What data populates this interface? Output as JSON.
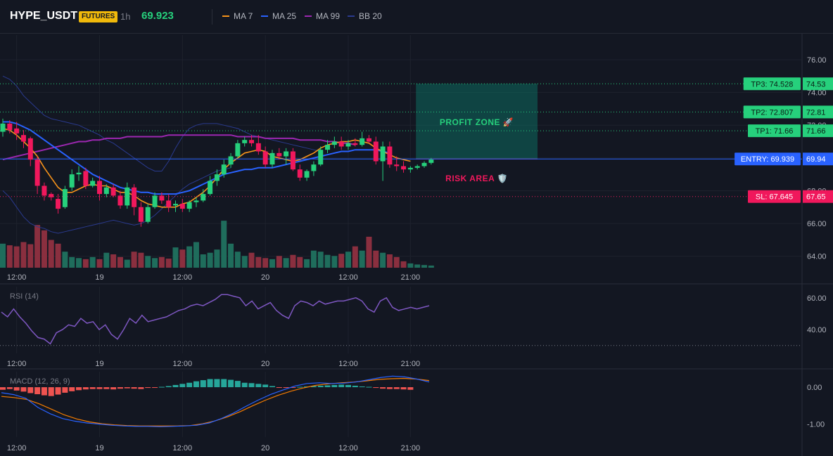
{
  "header": {
    "symbol": "HYPE_USDT",
    "badge": "FUTURES",
    "timeframe": "1h",
    "price": "69.923",
    "legend": [
      {
        "label": "MA 7",
        "color": "#f7931a"
      },
      {
        "label": "MA 25",
        "color": "#2962ff"
      },
      {
        "label": "MA 99",
        "color": "#9c27b0"
      },
      {
        "label": "BB 20",
        "color": "#2a3a8f"
      }
    ]
  },
  "colors": {
    "up": "#26d07c",
    "down": "#f0185c",
    "vol_up": "#1f6d5c",
    "vol_down": "#8a2f3f",
    "ma7": "#f7931a",
    "ma25": "#2962ff",
    "ma99": "#9c27b0",
    "bb": "#2a3a8f",
    "rsi": "#7e57c2",
    "macd": "#2962ff",
    "signal": "#f57c00",
    "hist_up": "#26a69a",
    "hist_down": "#ef5350",
    "profit": "#089981",
    "risk": "#f23645"
  },
  "time_axis": {
    "labels": [
      {
        "label": "12:00",
        "candle": 2
      },
      {
        "label": "19",
        "candle": 14
      },
      {
        "label": "12:00",
        "candle": 26
      },
      {
        "label": "20",
        "candle": 38
      },
      {
        "label": "12:00",
        "candle": 50
      },
      {
        "label": "21:00",
        "candle": 59
      }
    ]
  },
  "chart_data": [
    {
      "type": "candlestick",
      "title": "HYPE_USDT FUTURES 1h",
      "ylim": [
        63.3,
        77.5
      ],
      "y_ticks": [
        64.0,
        66.0,
        68.0,
        70.0,
        72.0,
        74.0,
        76.0
      ],
      "y_tick_labels": [
        "64.00",
        "66.00",
        "68.00",
        "70.00",
        "72.00",
        "74.00",
        "76.00"
      ],
      "candles": [
        [
          71.6,
          72.4,
          71.3,
          72.1
        ],
        [
          72.1,
          72.3,
          71.5,
          71.7
        ],
        [
          71.8,
          72.2,
          71.1,
          71.5
        ],
        [
          71.4,
          71.7,
          70.6,
          71.0
        ],
        [
          71.2,
          71.3,
          69.5,
          69.9
        ],
        [
          69.9,
          70.1,
          67.8,
          68.3
        ],
        [
          68.3,
          68.5,
          67.4,
          67.7
        ],
        [
          67.8,
          67.9,
          67.4,
          67.6
        ],
        [
          67.5,
          67.8,
          66.6,
          66.9
        ],
        [
          67.0,
          68.3,
          66.9,
          68.1
        ],
        [
          68.2,
          69.3,
          68.0,
          69.0
        ],
        [
          69.0,
          69.5,
          68.6,
          69.1
        ],
        [
          69.2,
          69.4,
          68.1,
          68.3
        ],
        [
          68.3,
          68.8,
          68.2,
          68.6
        ],
        [
          68.6,
          68.9,
          67.4,
          67.8
        ],
        [
          67.8,
          68.4,
          67.6,
          68.2
        ],
        [
          68.2,
          68.4,
          67.6,
          67.7
        ],
        [
          67.7,
          68.0,
          66.9,
          67.1
        ],
        [
          67.1,
          68.5,
          66.9,
          68.2
        ],
        [
          68.2,
          68.4,
          66.5,
          67.0
        ],
        [
          67.0,
          67.3,
          65.8,
          66.1
        ],
        [
          66.1,
          67.2,
          66.0,
          67.0
        ],
        [
          67.0,
          67.9,
          66.9,
          67.7
        ],
        [
          67.7,
          67.9,
          67.2,
          67.4
        ],
        [
          67.4,
          67.8,
          66.7,
          67.0
        ],
        [
          67.1,
          67.4,
          66.7,
          67.2
        ],
        [
          67.2,
          67.5,
          66.7,
          66.9
        ],
        [
          66.9,
          67.4,
          66.7,
          67.3
        ],
        [
          67.3,
          67.6,
          67.0,
          67.4
        ],
        [
          67.4,
          68.1,
          67.3,
          67.8
        ],
        [
          67.8,
          68.9,
          67.7,
          68.6
        ],
        [
          68.6,
          69.3,
          68.3,
          69.0
        ],
        [
          69.0,
          69.9,
          68.8,
          69.6
        ],
        [
          69.6,
          70.3,
          69.4,
          70.1
        ],
        [
          70.1,
          71.1,
          70.0,
          70.9
        ],
        [
          70.9,
          71.3,
          70.7,
          71.1
        ],
        [
          71.1,
          71.4,
          70.7,
          70.9
        ],
        [
          70.9,
          71.4,
          70.2,
          70.4
        ],
        [
          70.4,
          70.7,
          69.4,
          69.6
        ],
        [
          69.6,
          70.5,
          69.4,
          70.3
        ],
        [
          70.3,
          70.6,
          69.9,
          70.1
        ],
        [
          70.1,
          70.6,
          69.6,
          70.4
        ],
        [
          70.4,
          70.6,
          69.2,
          69.3
        ],
        [
          69.3,
          69.6,
          68.6,
          68.8
        ],
        [
          68.8,
          69.3,
          68.6,
          69.2
        ],
        [
          69.2,
          69.8,
          68.9,
          69.6
        ],
        [
          69.6,
          70.7,
          69.5,
          70.5
        ],
        [
          70.5,
          71.1,
          70.3,
          70.8
        ],
        [
          70.8,
          71.3,
          70.6,
          71.0
        ],
        [
          71.0,
          71.3,
          70.5,
          70.7
        ],
        [
          70.7,
          71.1,
          70.5,
          70.9
        ],
        [
          70.9,
          71.2,
          70.7,
          70.8
        ],
        [
          70.8,
          71.6,
          70.7,
          71.2
        ],
        [
          71.2,
          71.4,
          70.9,
          71.0
        ],
        [
          71.0,
          71.3,
          69.6,
          69.8
        ],
        [
          69.8,
          71.0,
          68.6,
          70.7
        ],
        [
          70.7,
          71.0,
          69.4,
          69.6
        ],
        [
          69.6,
          70.1,
          69.2,
          69.5
        ],
        [
          69.5,
          69.8,
          69.1,
          69.3
        ],
        [
          69.3,
          69.5,
          69.1,
          69.4
        ],
        [
          69.4,
          69.6,
          69.3,
          69.5
        ],
        [
          69.5,
          69.8,
          69.4,
          69.7
        ],
        [
          69.7,
          70.0,
          69.6,
          69.9
        ]
      ],
      "volume": [
        0.45,
        0.42,
        0.4,
        0.48,
        0.44,
        0.8,
        0.7,
        0.52,
        0.45,
        0.3,
        0.2,
        0.18,
        0.16,
        0.2,
        0.16,
        0.28,
        0.25,
        0.2,
        0.15,
        0.3,
        0.28,
        0.22,
        0.18,
        0.2,
        0.17,
        0.38,
        0.34,
        0.4,
        0.48,
        0.25,
        0.28,
        0.34,
        0.88,
        0.45,
        0.3,
        0.22,
        0.28,
        0.2,
        0.18,
        0.16,
        0.22,
        0.18,
        0.24,
        0.2,
        0.16,
        0.32,
        0.3,
        0.24,
        0.22,
        0.26,
        0.3,
        0.4,
        0.32,
        0.58,
        0.32,
        0.28,
        0.25,
        0.2,
        0.12,
        0.08,
        0.06,
        0.05,
        0.04
      ],
      "vol_max": 1.0,
      "ma7": [
        71.8,
        71.7,
        71.4,
        71.0,
        70.6,
        70.1,
        69.4,
        68.8,
        68.2,
        67.9,
        67.9,
        68.1,
        68.3,
        68.4,
        68.3,
        68.3,
        68.1,
        67.9,
        67.9,
        67.7,
        67.4,
        67.2,
        67.1,
        67.0,
        67.0,
        67.0,
        67.2,
        67.3,
        67.6,
        67.9,
        68.3,
        68.8,
        69.3,
        69.7,
        70.0,
        70.3,
        70.4,
        70.5,
        70.4,
        70.1,
        70.0,
        69.9,
        69.8,
        69.9,
        70.1,
        70.3,
        70.6,
        70.8,
        70.9,
        71.0,
        71.0,
        71.1,
        71.0,
        70.9,
        70.6,
        70.4,
        70.2,
        70.0,
        69.9,
        69.8
      ],
      "ma25": [
        72.2,
        72.2,
        72.1,
        71.9,
        71.7,
        71.4,
        71.1,
        70.8,
        70.5,
        70.2,
        69.9,
        69.6,
        69.3,
        69.0,
        68.8,
        68.6,
        68.4,
        68.2,
        68.1,
        68.0,
        67.9,
        67.9,
        67.8,
        67.8,
        67.8,
        67.8,
        67.9,
        68.0,
        68.2,
        68.4,
        68.6,
        68.8,
        69.0,
        69.1,
        69.2,
        69.3,
        69.3,
        69.4,
        69.4,
        69.4,
        69.5,
        69.6,
        69.7,
        69.8,
        69.9,
        70.0,
        70.1,
        70.2,
        70.3,
        70.4,
        70.4,
        70.5,
        70.5,
        70.5,
        70.5,
        70.4,
        70.3
      ],
      "ma99": [
        69.9,
        70.0,
        70.1,
        70.2,
        70.3,
        70.4,
        70.5,
        70.6,
        70.7,
        70.8,
        70.9,
        71.0,
        71.0,
        71.1,
        71.1,
        71.2,
        71.2,
        71.2,
        71.3,
        71.3,
        71.3,
        71.3,
        71.3,
        71.3,
        71.4,
        71.4,
        71.4,
        71.4,
        71.4,
        71.4,
        71.4,
        71.4,
        71.4,
        71.4,
        71.3,
        71.3,
        71.3,
        71.3,
        71.2,
        71.2,
        71.2,
        71.2,
        71.2,
        71.1,
        71.1,
        71.1,
        71.1,
        71.0,
        71.0,
        70.9,
        70.9,
        70.8
      ],
      "bb_upper": [
        75.0,
        74.8,
        74.4,
        73.8,
        73.4,
        73.0,
        72.6,
        72.4,
        72.3,
        72.2,
        72.1,
        72.0,
        71.8,
        71.6,
        71.4,
        71.1,
        70.9,
        70.6,
        70.3,
        70.0,
        69.7,
        69.4,
        69.2,
        69.2,
        69.8,
        70.6,
        71.3,
        71.8,
        72.0,
        72.1,
        72.1,
        72.1,
        72.0,
        71.9,
        71.8,
        71.6,
        71.4,
        71.3,
        71.2,
        71.1,
        71.0,
        70.9,
        70.8,
        70.7,
        70.6,
        70.5,
        70.4
      ],
      "bb_lower": [
        68.0,
        67.6,
        67.0,
        66.4,
        66.0,
        65.8,
        65.7,
        65.5,
        65.4,
        65.5,
        65.6,
        65.7,
        65.8,
        65.9,
        66.0,
        66.1,
        66.2,
        66.1,
        66.0,
        65.9,
        66.0,
        66.2,
        66.5,
        66.9,
        67.3,
        67.7,
        68.1,
        68.4,
        68.6,
        68.8,
        69.0,
        69.2,
        69.3,
        69.4
      ],
      "levels": [
        {
          "label": "TP3: 74.528",
          "value": 74.528,
          "axis_label": "74.53",
          "kind": "tp"
        },
        {
          "label": "TP2: 72.807",
          "value": 72.807,
          "axis_label": "72.81",
          "kind": "tp"
        },
        {
          "label": "TP1: 71.66",
          "value": 71.66,
          "axis_label": "71.66",
          "kind": "tp"
        },
        {
          "label": "ENTRY: 69.939",
          "value": 69.939,
          "axis_label": "69.94",
          "kind": "entry"
        },
        {
          "label": "SL: 67.645",
          "value": 67.645,
          "axis_label": "67.65",
          "kind": "sl"
        }
      ],
      "profit_zone": {
        "label": "PROFIT ZONE 🚀",
        "from": 69.939,
        "to": 74.528,
        "start_candle": 59.8,
        "end_candle": 76
      },
      "risk_zone": {
        "label": "RISK AREA 🛡️",
        "from": 67.645,
        "to": 69.939,
        "start_candle": 59.8,
        "end_candle": 76
      }
    },
    {
      "type": "line",
      "title": "RSI (14)",
      "ylim": [
        25,
        67
      ],
      "y_ticks": [
        40.0,
        60.0
      ],
      "y_tick_labels": [
        "40.00",
        "60.00"
      ],
      "reference": 30,
      "values": [
        51,
        48,
        53,
        48,
        44,
        39,
        35,
        34,
        31,
        38,
        40,
        43,
        42,
        47,
        44,
        45,
        40,
        43,
        37,
        34,
        40,
        47,
        44,
        49,
        45,
        46,
        47,
        48,
        50,
        52,
        53,
        55,
        56,
        55,
        57,
        59,
        62,
        62,
        61,
        60,
        55,
        58,
        53,
        55,
        57,
        52,
        49,
        47,
        55,
        58,
        57,
        55,
        58,
        56,
        57,
        58,
        58,
        59,
        60,
        58,
        53,
        51,
        58,
        60,
        54,
        52,
        53,
        54,
        53,
        54,
        55
      ]
    },
    {
      "type": "bar+line",
      "title": "MACD (12, 26, 9)",
      "ylim": [
        -1.35,
        0.42
      ],
      "y_ticks": [
        -1.0,
        0.0
      ],
      "y_tick_labels": [
        "-1.00",
        "0.00"
      ],
      "histogram": [
        -0.07,
        -0.05,
        -0.09,
        -0.12,
        -0.16,
        -0.19,
        -0.22,
        -0.24,
        -0.2,
        -0.15,
        -0.11,
        -0.08,
        -0.06,
        -0.05,
        -0.05,
        -0.05,
        -0.06,
        -0.04,
        -0.03,
        -0.04,
        -0.05,
        -0.02,
        -0.01,
        0.01,
        0.03,
        0.06,
        0.09,
        0.12,
        0.16,
        0.19,
        0.22,
        0.22,
        0.22,
        0.2,
        0.17,
        0.12,
        0.11,
        0.09,
        0.07,
        0.03,
        -0.01,
        -0.02,
        -0.01,
        0.01,
        0.02,
        0.03,
        0.04,
        0.05,
        0.06,
        0.07,
        0.06,
        0.04,
        0.02,
        0.01,
        -0.02,
        -0.04,
        -0.05,
        -0.05,
        -0.06,
        -0.07
      ],
      "macd": [
        -0.15,
        -0.2,
        -0.3,
        -0.55,
        -0.72,
        -0.85,
        -0.92,
        -0.97,
        -1.0,
        -1.03,
        -1.05,
        -1.06,
        -1.06,
        -1.07,
        -1.06,
        -1.05,
        -1.03,
        -0.97,
        -0.85,
        -0.7,
        -0.52,
        -0.35,
        -0.2,
        -0.08,
        0.03,
        0.1,
        0.12,
        0.1,
        0.11,
        0.14,
        0.2,
        0.26,
        0.3,
        0.28,
        0.22,
        0.14
      ],
      "signal": [
        -0.25,
        -0.28,
        -0.33,
        -0.45,
        -0.6,
        -0.75,
        -0.86,
        -0.94,
        -0.99,
        -1.02,
        -1.04,
        -1.05,
        -1.05,
        -1.05,
        -1.05,
        -1.04,
        -0.99,
        -0.91,
        -0.8,
        -0.66,
        -0.5,
        -0.35,
        -0.22,
        -0.11,
        -0.02,
        0.05,
        0.09,
        0.12,
        0.14,
        0.17,
        0.21,
        0.23,
        0.24,
        0.22,
        0.18
      ]
    }
  ]
}
